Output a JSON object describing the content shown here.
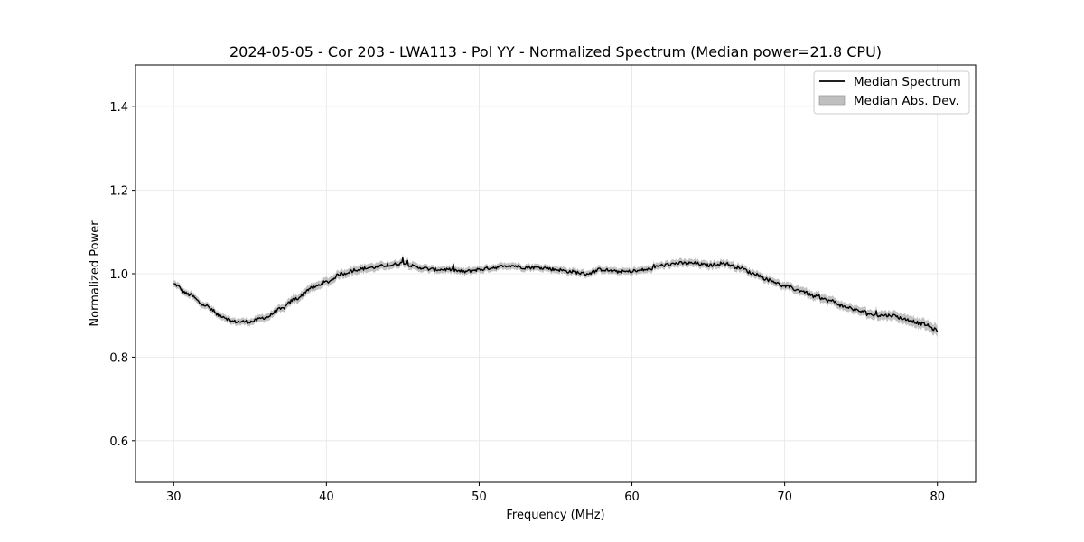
{
  "chart_data": {
    "type": "line",
    "title": "2024-05-05 - Cor 203 - LWA113 - Pol YY - Normalized Spectrum (Median power=21.8 CPU)",
    "xlabel": "Frequency (MHz)",
    "ylabel": "Normalized Power",
    "xlim": [
      27.5,
      82.5
    ],
    "ylim": [
      0.5,
      1.5
    ],
    "xticks": [
      30,
      40,
      50,
      60,
      70,
      80
    ],
    "yticks": [
      0.6,
      0.8,
      1.0,
      1.2,
      1.4
    ],
    "xtick_labels": [
      "30",
      "40",
      "50",
      "60",
      "70",
      "80"
    ],
    "ytick_labels": [
      "0.6",
      "0.8",
      "1.0",
      "1.2",
      "1.4"
    ],
    "grid": true,
    "legend": {
      "placement": "top-right",
      "entries": [
        {
          "label": "Median Spectrum",
          "kind": "line",
          "color": "#000000"
        },
        {
          "label": "Median Abs. Dev.",
          "kind": "band",
          "color": "#bfbfbf"
        }
      ]
    },
    "series": [
      {
        "name": "Median Spectrum",
        "x": [
          30,
          31,
          32,
          33,
          34,
          35,
          36,
          37,
          38,
          39,
          40,
          41,
          42,
          43,
          44,
          45,
          46,
          47,
          48,
          49,
          50,
          51,
          52,
          53,
          54,
          55,
          56,
          57,
          58,
          59,
          60,
          61,
          62,
          63,
          64,
          65,
          66,
          67,
          68,
          69,
          70,
          71,
          72,
          73,
          74,
          75,
          76,
          77,
          78,
          79,
          80
        ],
        "y": [
          0.975,
          0.95,
          0.925,
          0.9,
          0.885,
          0.885,
          0.895,
          0.915,
          0.94,
          0.965,
          0.98,
          1.0,
          1.01,
          1.015,
          1.02,
          1.025,
          1.015,
          1.01,
          1.01,
          1.005,
          1.01,
          1.015,
          1.02,
          1.015,
          1.015,
          1.01,
          1.005,
          1.0,
          1.01,
          1.005,
          1.005,
          1.01,
          1.02,
          1.025,
          1.025,
          1.02,
          1.025,
          1.015,
          1.0,
          0.985,
          0.97,
          0.96,
          0.945,
          0.935,
          0.92,
          0.91,
          0.9,
          0.9,
          0.89,
          0.88,
          0.865
        ],
        "mad": [
          0.008,
          0.008,
          0.008,
          0.008,
          0.008,
          0.008,
          0.009,
          0.009,
          0.01,
          0.01,
          0.01,
          0.01,
          0.01,
          0.01,
          0.009,
          0.009,
          0.009,
          0.008,
          0.008,
          0.008,
          0.008,
          0.008,
          0.008,
          0.008,
          0.008,
          0.008,
          0.008,
          0.008,
          0.008,
          0.008,
          0.008,
          0.008,
          0.008,
          0.009,
          0.009,
          0.009,
          0.009,
          0.009,
          0.009,
          0.009,
          0.009,
          0.01,
          0.01,
          0.01,
          0.01,
          0.01,
          0.011,
          0.011,
          0.012,
          0.012,
          0.013
        ]
      }
    ],
    "annotations": [
      {
        "x": 45.0,
        "y": 1.038,
        "text": ""
      }
    ]
  },
  "colors": {
    "line": "#000000",
    "band": "#bfbfbf",
    "grid": "#e6e6e6",
    "frame": "#000000"
  }
}
